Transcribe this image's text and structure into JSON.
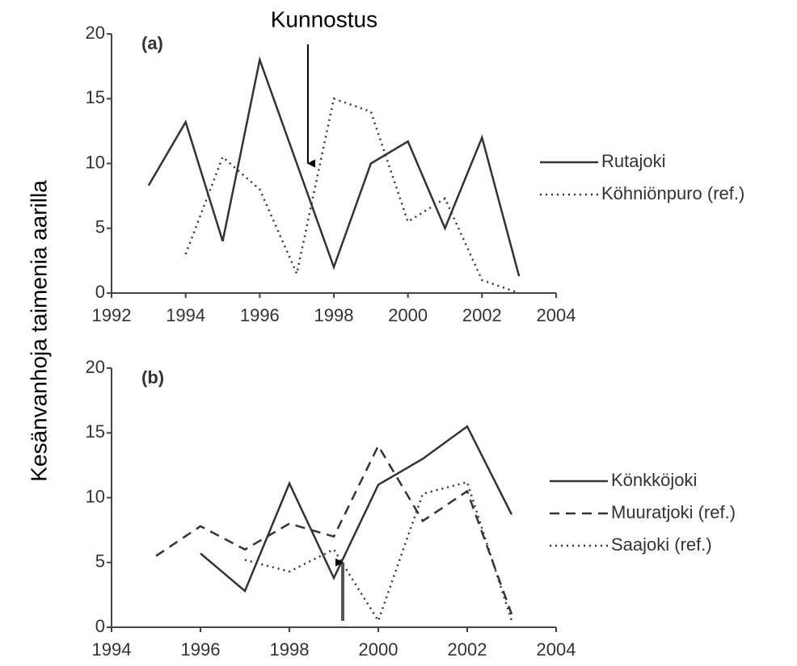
{
  "chart_data": [
    {
      "type": "line",
      "label": "(a)",
      "ylabel": "Kesänvanhoja taimenia aarilla",
      "xlim": [
        1992,
        2004
      ],
      "xticks": [
        1992,
        1994,
        1996,
        1998,
        2000,
        2002,
        2004
      ],
      "ylim": [
        0,
        20
      ],
      "yticks": [
        0,
        5,
        10,
        15,
        20
      ],
      "annotation": {
        "text": "Kunnostus",
        "x": 1997.3,
        "y": 10
      },
      "series": [
        {
          "name": "Rutajoki",
          "color": "#333333",
          "dash": "solid",
          "x": [
            1993,
            1994,
            1995,
            1996,
            1997,
            1998,
            1999,
            2000,
            2001,
            2002,
            2003
          ],
          "values": [
            8.3,
            13.2,
            4,
            18,
            10,
            2,
            10,
            11.7,
            5,
            12,
            1.3
          ]
        },
        {
          "name": "Köhniönpuro (ref.)",
          "color": "#333333",
          "dash": "dotted",
          "x": [
            1994,
            1995,
            1996,
            1997,
            1998,
            1999,
            2000,
            2001,
            2002,
            2003
          ],
          "values": [
            3,
            10.5,
            8,
            1.5,
            15,
            14,
            5.5,
            7.3,
            1,
            0
          ]
        }
      ]
    },
    {
      "type": "line",
      "label": "(b)",
      "xlim": [
        1994,
        2004
      ],
      "xticks": [
        1994,
        1996,
        1998,
        2000,
        2002,
        2004
      ],
      "ylim": [
        0,
        20
      ],
      "yticks": [
        0,
        5,
        10,
        15,
        20
      ],
      "annotation": {
        "x": 1999.2,
        "y": 5
      },
      "series": [
        {
          "name": "Könkköjoki",
          "color": "#333333",
          "dash": "solid",
          "x": [
            1996,
            1997,
            1998,
            1999,
            2000,
            2001,
            2002,
            2003
          ],
          "values": [
            5.7,
            2.8,
            11.1,
            3.8,
            11,
            13,
            15.5,
            8.7
          ]
        },
        {
          "name": "Muuratjoki (ref.)",
          "color": "#333333",
          "dash": "dashed",
          "x": [
            1995,
            1996,
            1997,
            1998,
            1999,
            2000,
            2001,
            2002,
            2003
          ],
          "values": [
            5.5,
            7.8,
            6,
            8,
            7,
            14,
            8.2,
            10.5,
            1
          ]
        },
        {
          "name": "Saajoki (ref.)",
          "color": "#333333",
          "dash": "dotted",
          "x": [
            1997,
            1998,
            1999,
            2000,
            2001,
            2002,
            2003
          ],
          "values": [
            5.2,
            4.3,
            6,
            0.5,
            10.3,
            11.2,
            0.5
          ]
        }
      ]
    }
  ]
}
